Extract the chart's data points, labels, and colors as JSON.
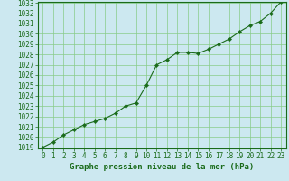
{
  "x": [
    0,
    1,
    2,
    3,
    4,
    5,
    6,
    7,
    8,
    9,
    10,
    11,
    12,
    13,
    14,
    15,
    16,
    17,
    18,
    19,
    20,
    21,
    22,
    23
  ],
  "y": [
    1019.0,
    1019.5,
    1020.2,
    1020.7,
    1021.2,
    1021.5,
    1021.8,
    1022.3,
    1023.0,
    1023.3,
    1025.0,
    1027.0,
    1027.5,
    1028.2,
    1028.2,
    1028.1,
    1028.5,
    1029.0,
    1029.5,
    1030.2,
    1030.8,
    1031.2,
    1032.0,
    1033.1
  ],
  "line_color": "#1a6b1a",
  "marker": "D",
  "marker_size": 2.2,
  "bg_color": "#cce8f0",
  "grid_color": "#88cc88",
  "title": "Graphe pression niveau de la mer (hPa)",
  "title_color": "#1a6b1a",
  "title_fontsize": 6.5,
  "ylim_min": 1019,
  "ylim_max": 1033,
  "xlim_min": 0,
  "xlim_max": 23,
  "yticks": [
    1019,
    1020,
    1021,
    1022,
    1023,
    1024,
    1025,
    1026,
    1027,
    1028,
    1029,
    1030,
    1031,
    1032,
    1033
  ],
  "xticks": [
    0,
    1,
    2,
    3,
    4,
    5,
    6,
    7,
    8,
    9,
    10,
    11,
    12,
    13,
    14,
    15,
    16,
    17,
    18,
    19,
    20,
    21,
    22,
    23
  ],
  "tick_color": "#1a6b1a",
  "tick_fontsize": 5.5,
  "linewidth": 0.8
}
